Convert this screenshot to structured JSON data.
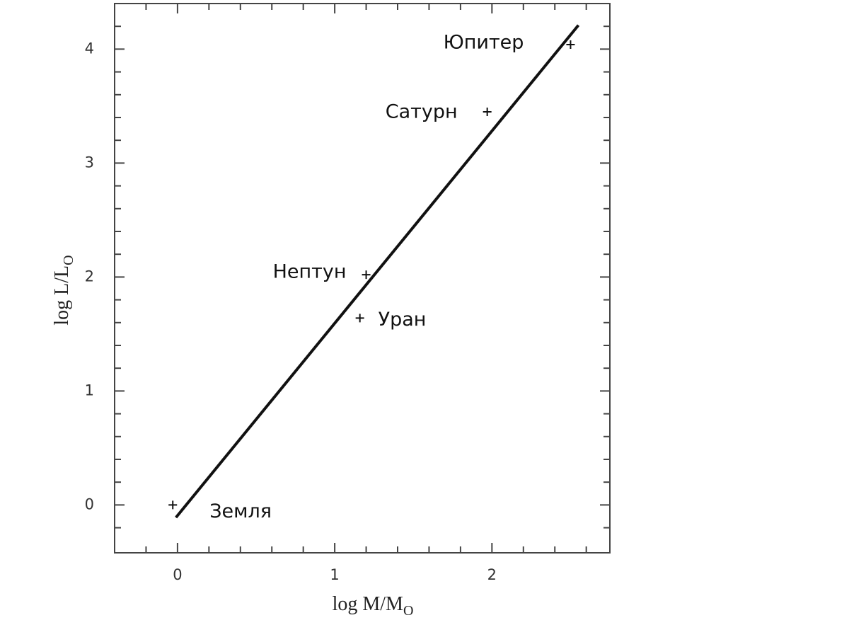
{
  "chart_data": {
    "type": "scatter",
    "xlabel": {
      "text": "log M/M",
      "sub": "O"
    },
    "ylabel": {
      "text": "log L/L",
      "sub": "O"
    },
    "xlim": [
      -0.4,
      2.75
    ],
    "ylim": [
      -0.42,
      4.4
    ],
    "xticks": [
      0,
      1,
      2
    ],
    "yticks": [
      0,
      1,
      2,
      3,
      4
    ],
    "xminorticks": [
      -0.2,
      0.2,
      0.4,
      0.6,
      0.8,
      1.2,
      1.4,
      1.6,
      1.8,
      2.2,
      2.4,
      2.6
    ],
    "yminorticks": [
      -0.2,
      0.2,
      0.4,
      0.6,
      0.8,
      1.2,
      1.4,
      1.6,
      1.8,
      2.2,
      2.4,
      2.6,
      2.8,
      3.2,
      3.4,
      3.6,
      3.8,
      4.2
    ],
    "points": {
      "labels": [
        "Земля",
        "Уран",
        "Нептун",
        "Сатурн",
        "Юпитер"
      ],
      "x": [
        -0.03,
        1.16,
        1.2,
        1.97,
        2.5
      ],
      "y": [
        0,
        1.64,
        2.02,
        3.45,
        4.04
      ],
      "color": "#111111"
    },
    "fit_line": {
      "x": [
        -0.01,
        2.55
      ],
      "y": [
        -0.11,
        4.21
      ],
      "color": "#111111"
    }
  }
}
